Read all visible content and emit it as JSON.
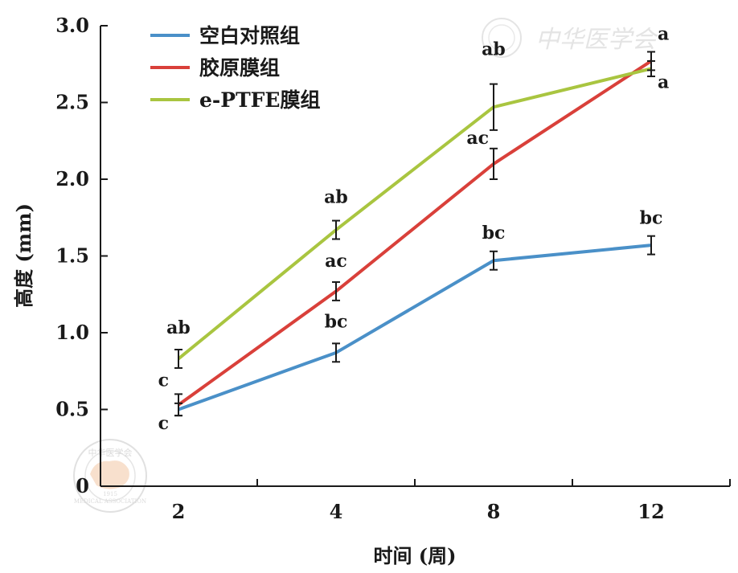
{
  "chart_data": {
    "type": "line",
    "title": "",
    "xlabel": "时间 (周)",
    "ylabel": "高度 (mm)",
    "categories": [
      "2",
      "4",
      "8",
      "12"
    ],
    "ylim": [
      0,
      3.0
    ],
    "yticks": [
      "0",
      "0.5",
      "1.0",
      "1.5",
      "2.0",
      "2.5",
      "3.0"
    ],
    "ytick_values": [
      0,
      0.5,
      1.0,
      1.5,
      2.0,
      2.5,
      3.0
    ],
    "grid": false,
    "legend_position": "top-left",
    "series": [
      {
        "name": "空白对照组",
        "color": "#4a90c8",
        "values": [
          0.5,
          0.87,
          1.47,
          1.57
        ],
        "errors": [
          0.04,
          0.06,
          0.06,
          0.06
        ],
        "labels": [
          "c",
          "bc",
          "bc",
          "bc"
        ]
      },
      {
        "name": "胶原膜组",
        "color": "#d9403a",
        "values": [
          0.53,
          1.27,
          2.1,
          2.77
        ],
        "errors": [
          0.07,
          0.06,
          0.1,
          0.06
        ],
        "labels": [
          "c",
          "ac",
          "ac",
          "a"
        ]
      },
      {
        "name": "e-PTFE膜组",
        "color": "#a9c540",
        "values": [
          0.83,
          1.67,
          2.47,
          2.72
        ],
        "errors": [
          0.06,
          0.06,
          0.15,
          0.05
        ],
        "labels": [
          "ab",
          "ab",
          "ab",
          "a"
        ]
      }
    ]
  },
  "watermark": {
    "text": "中华医学会",
    "seal_top": "中华医学会",
    "seal_bottom": "MEDICAL ASSOCIATION",
    "seal_year": "1915"
  }
}
